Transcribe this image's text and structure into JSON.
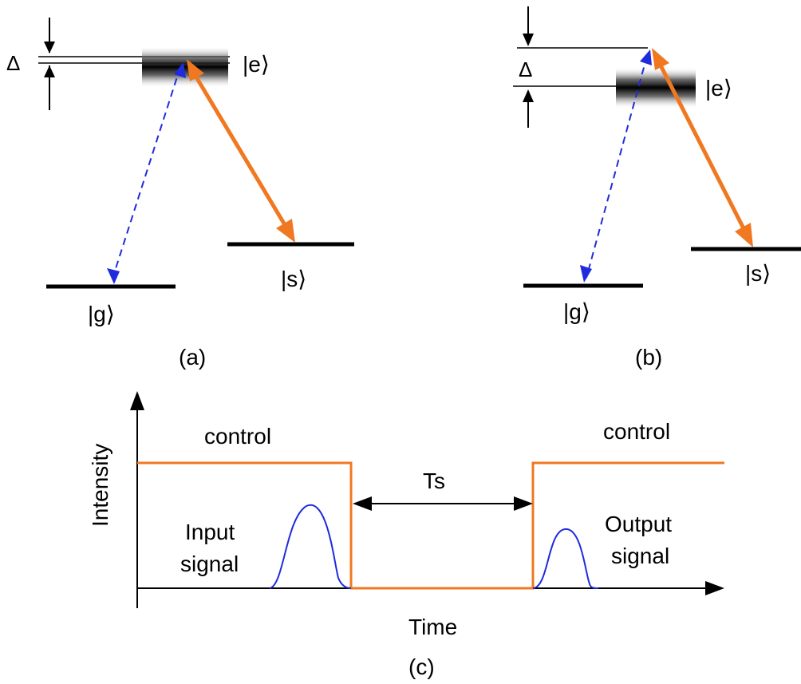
{
  "panel_a": {
    "delta": "Δ",
    "state_e": "|e⟩",
    "state_g": "|g⟩",
    "state_s": "|s⟩",
    "caption": "(a)"
  },
  "panel_b": {
    "delta": "Δ",
    "state_e": "|e⟩",
    "state_g": "|g⟩",
    "state_s": "|s⟩",
    "caption": "(b)"
  },
  "panel_c": {
    "ylabel": "Intensity",
    "xlabel": "Time",
    "control_left": "control",
    "control_right": "control",
    "ts_label": "Ts",
    "input_signal_line1": "Input",
    "input_signal_line2": "signal",
    "output_signal_line1": "Output",
    "output_signal_line2": "signal",
    "caption": "(c)"
  },
  "colors": {
    "control": "#f07820",
    "signal_probe": "#1f2bdc",
    "level": "#000000"
  }
}
